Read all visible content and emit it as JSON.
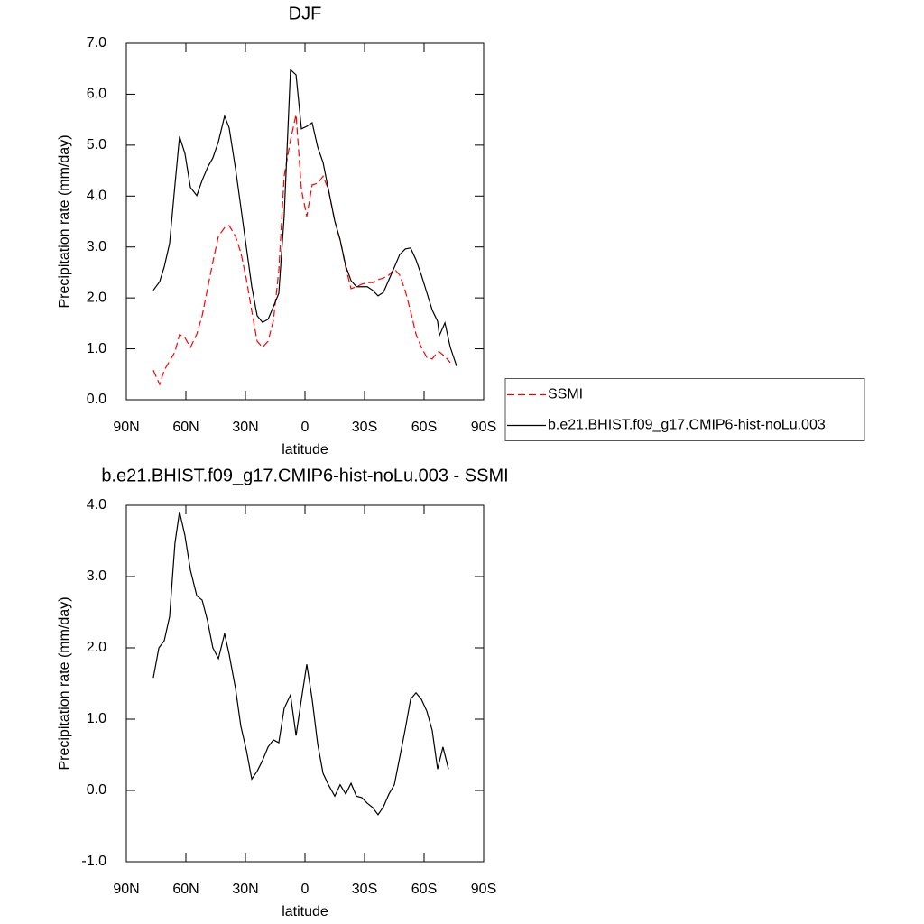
{
  "chart_data": [
    {
      "type": "line",
      "title": "DJF",
      "xlabel": "latitude",
      "ylabel": "Precipitation rate (mm/day)",
      "x": [
        76.4,
        73.2,
        70.9,
        68.2,
        65.5,
        63.2,
        60.5,
        57.7,
        54.5,
        51.8,
        49.1,
        46.4,
        43.6,
        40.5,
        38.2,
        35,
        32.3,
        29.5,
        26.8,
        24.1,
        21.4,
        18.6,
        15.9,
        13.2,
        10.5,
        7.3,
        4.5,
        1.8,
        -0.9,
        -3.6,
        -6.4,
        -9.1,
        -11.8,
        -15,
        -17.7,
        -20.5,
        -23.2,
        -25.9,
        -28.6,
        -31.4,
        -34.1,
        -36.8,
        -39.5,
        -42.3,
        -45,
        -47.7,
        -50.5,
        -53.2,
        -55.9,
        -58.6,
        -61.4,
        -64.1,
        -66.8,
        -67.7,
        -70.5,
        -73.2,
        -76.4
      ],
      "series": [
        {
          "name": "SSMI",
          "color": "#ff0000",
          "style": "dashed",
          "values": [
            0.58,
            0.3,
            0.58,
            0.76,
            0.94,
            1.28,
            1.22,
            1.03,
            1.29,
            1.65,
            2.18,
            2.71,
            3.21,
            3.38,
            3.42,
            3.21,
            2.89,
            2.36,
            1.74,
            1.15,
            1.03,
            1.15,
            1.56,
            2.53,
            4.39,
            5.1,
            5.6,
            4.13,
            3.6,
            4.22,
            4.25,
            4.39,
            4.13,
            3.51,
            3.14,
            2.6,
            2.18,
            2.22,
            2.27,
            2.3,
            2.3,
            2.36,
            2.39,
            2.45,
            2.57,
            2.45,
            2.14,
            1.74,
            1.29,
            1.03,
            0.83,
            0.8,
            0.94,
            0.94,
            0.85,
            0.73,
            null
          ]
        },
        {
          "name": "b.e21.BHIST.f09_g17.CMIP6-hist-noLu.003",
          "color": "#000000",
          "style": "solid",
          "values": [
            2.15,
            2.32,
            2.61,
            3.07,
            4.22,
            5.17,
            4.84,
            4.17,
            4.01,
            4.31,
            4.56,
            4.75,
            5.07,
            5.57,
            5.34,
            4.54,
            3.78,
            2.98,
            2.22,
            1.65,
            1.52,
            1.58,
            1.83,
            2.09,
            3.6,
            6.48,
            6.38,
            5.32,
            5.37,
            5.44,
            4.96,
            4.66,
            4.13,
            3.51,
            3.14,
            2.63,
            2.34,
            2.22,
            2.22,
            2.22,
            2.15,
            2.04,
            2.11,
            2.36,
            2.6,
            2.85,
            2.96,
            2.98,
            2.75,
            2.45,
            2.1,
            1.76,
            1.54,
            1.26,
            1.51,
            1.03,
            0.66
          ]
        }
      ],
      "xlim": [
        90,
        -90
      ],
      "xticks": [
        {
          "value": 90,
          "label": "90N"
        },
        {
          "value": 60,
          "label": "60N"
        },
        {
          "value": 30,
          "label": "30N"
        },
        0,
        {
          "value": -30,
          "label": "30S"
        },
        {
          "value": -60,
          "label": "60S"
        },
        {
          "value": -90,
          "label": "90S"
        }
      ],
      "ylim": [
        0,
        7
      ],
      "yticks": [
        {
          "value": 0,
          "label": "0.0"
        },
        {
          "value": 1,
          "label": "1.0"
        },
        {
          "value": 2,
          "label": "2.0"
        },
        {
          "value": 3,
          "label": "3.0"
        },
        {
          "value": 4,
          "label": "4.0"
        },
        {
          "value": 5,
          "label": "5.0"
        },
        {
          "value": 6,
          "label": "6.0"
        },
        {
          "value": 7,
          "label": "7.0"
        }
      ],
      "legend": "right"
    },
    {
      "type": "line",
      "title": "b.e21.BHIST.f09_g17.CMIP6-hist-noLu.003 - SSMI",
      "xlabel": "latitude",
      "ylabel": "Precipitation rate (mm/day)",
      "x": [
        76.4,
        73.6,
        70.9,
        68.2,
        65.5,
        63.2,
        60.5,
        57.7,
        54.5,
        51.8,
        49.1,
        46.4,
        43.6,
        40.5,
        38.2,
        35,
        32.3,
        29.5,
        26.8,
        24.1,
        21.4,
        18.6,
        15.9,
        13.2,
        10.5,
        7.3,
        4.5,
        1.8,
        -0.9,
        -3.6,
        -6.4,
        -9.1,
        -11.8,
        -15,
        -17.7,
        -20.5,
        -23.2,
        -25.9,
        -28.6,
        -31.4,
        -34.1,
        -36.8,
        -39.5,
        -42.3,
        -45,
        -47.7,
        -50.5,
        -53.2,
        -55.9,
        -58.6,
        -61.4,
        -64.1,
        -66.8,
        -69.5,
        -72.3
      ],
      "values": [
        1.58,
        2.0,
        2.1,
        2.44,
        3.47,
        3.91,
        3.58,
        3.09,
        2.73,
        2.67,
        2.38,
        2.0,
        1.85,
        2.2,
        1.91,
        1.43,
        0.9,
        0.56,
        0.16,
        0.27,
        0.42,
        0.61,
        0.71,
        0.67,
        1.15,
        1.34,
        0.77,
        1.28,
        1.77,
        1.28,
        0.65,
        0.24,
        0.08,
        -0.08,
        0.08,
        -0.05,
        0.1,
        -0.08,
        -0.1,
        -0.18,
        -0.24,
        -0.34,
        -0.23,
        -0.05,
        0.08,
        0.46,
        0.86,
        1.28,
        1.37,
        1.28,
        1.11,
        0.84,
        0.3,
        0.61,
        0.3
      ],
      "color": "#000000",
      "style": "solid",
      "xlim": [
        90,
        -90
      ],
      "xticks": [
        {
          "value": 90,
          "label": "90N"
        },
        {
          "value": 60,
          "label": "60N"
        },
        {
          "value": 30,
          "label": "30N"
        },
        0,
        {
          "value": -30,
          "label": "30S"
        },
        {
          "value": -60,
          "label": "60S"
        },
        {
          "value": -90,
          "label": "90S"
        }
      ],
      "ylim": [
        -1,
        4
      ],
      "yticks": [
        {
          "value": -1,
          "label": "-1.0"
        },
        {
          "value": 0,
          "label": "0.0"
        },
        {
          "value": 1,
          "label": "1.0"
        },
        {
          "value": 2,
          "label": "2.0"
        },
        {
          "value": 3,
          "label": "3.0"
        },
        {
          "value": 4,
          "label": "4.0"
        }
      ]
    }
  ]
}
